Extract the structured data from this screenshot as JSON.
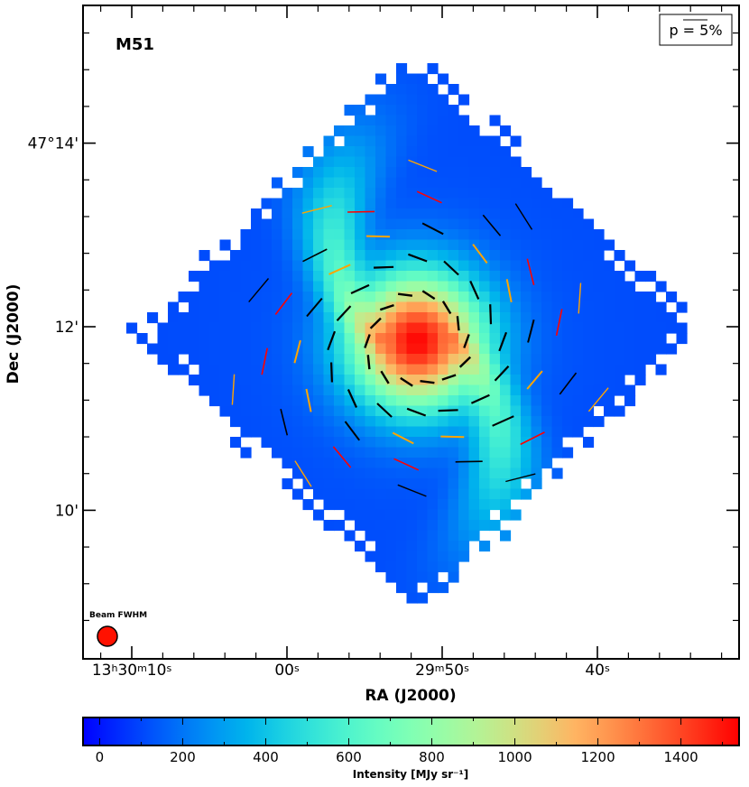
{
  "chart_data": {
    "type": "heatmap",
    "object_label": "M51",
    "xlabel": "RA (J2000)",
    "ylabel": "Dec (J2000)",
    "x_ticks": [
      {
        "ra_s": 10,
        "label": "13h30m10s",
        "parts": [
          "13",
          "h",
          "30",
          "m",
          "10",
          "s"
        ]
      },
      {
        "ra_s": 0,
        "label": "00s",
        "parts": [
          "00",
          "s"
        ]
      },
      {
        "ra_s": -10,
        "label": "29m50s",
        "parts": [
          "29",
          "m",
          "50",
          "s"
        ]
      },
      {
        "ra_s": -20,
        "label": "40s",
        "parts": [
          "40",
          "s"
        ]
      }
    ],
    "y_ticks": [
      {
        "dec_arcmin": 14,
        "label": "47°14'"
      },
      {
        "dec_arcmin": 12,
        "label": "12'"
      },
      {
        "dec_arcmin": 10,
        "label": "10'"
      }
    ],
    "xlim_ra_s": [
      13.2,
      -29.0
    ],
    "ylim_dec_arcmin": [
      8.35,
      15.5
    ],
    "legend": {
      "label": "p = 5%"
    },
    "beam": {
      "label": "Beam FWHM",
      "color": "#ff1100"
    },
    "colorbar": {
      "label": "Intensity [MJy sr⁻¹]",
      "vmin": -40,
      "vmax": 1540,
      "ticks": [
        0,
        200,
        400,
        600,
        800,
        1000,
        1200,
        1400
      ],
      "colormap": "rainbow"
    },
    "image_model": {
      "background_mjy_sr": 90,
      "bulge_peak_mjy_sr": 1380,
      "arm_amplitude_mjy_sr": 420
    },
    "vector_colors": {
      "high": "#000000",
      "mid": "#ffa500",
      "low": "#ff0000"
    }
  }
}
